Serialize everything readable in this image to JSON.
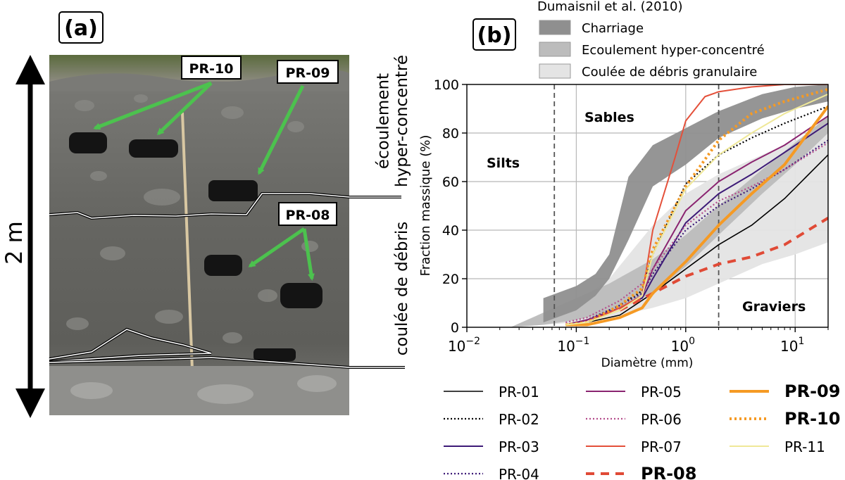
{
  "panel_a": {
    "label": "(a)",
    "height_label": "2 m",
    "sample_labels": [
      "PR-10",
      "PR-09",
      "PR-08"
    ],
    "unit_upper": "écoulement\nhyper-concentré",
    "unit_lower": "coulée de débris"
  },
  "chart_data": {
    "type": "line",
    "panel_label": "(b)",
    "title": "",
    "xlabel": "Diamètre (mm)",
    "ylabel": "Fraction massique (%)",
    "xscale": "log",
    "xlim": [
      0.01,
      20
    ],
    "ylim": [
      0,
      100
    ],
    "xticks": [
      0.01,
      0.1,
      1,
      10
    ],
    "xtick_labels": [
      {
        "base": "10",
        "exp": "−2"
      },
      {
        "base": "10",
        "exp": "−1"
      },
      {
        "base": "10",
        "exp": "0"
      },
      {
        "base": "10",
        "exp": "1"
      }
    ],
    "yticks": [
      0,
      20,
      40,
      60,
      80,
      100
    ],
    "grid": true,
    "vlines": [
      0.063,
      2
    ],
    "annotations": [
      "Silts",
      "Sables",
      "Graviers"
    ],
    "band_legend_title": "Dumaisnil et al. (2010)",
    "bands": [
      {
        "name": "Charriage",
        "color": "#8f8f8f",
        "x": [
          0.05,
          0.1,
          0.15,
          0.2,
          0.3,
          0.5,
          1,
          2,
          5,
          10,
          20
        ],
        "low": [
          2,
          7,
          13,
          20,
          36,
          58,
          67,
          78,
          86,
          90,
          93
        ],
        "high": [
          12,
          17,
          22,
          30,
          62,
          75,
          82,
          89,
          96,
          99,
          100
        ]
      },
      {
        "name": "Ecoulement hyper-concentré",
        "color": "#bcbcbc",
        "x": [
          0.025,
          0.05,
          0.1,
          0.2,
          0.5,
          1,
          2,
          5,
          10,
          20
        ],
        "low": [
          0,
          1,
          3,
          6,
          14,
          25,
          38,
          55,
          67,
          80
        ],
        "high": [
          0,
          6,
          12,
          18,
          28,
          38,
          50,
          65,
          76,
          87
        ]
      },
      {
        "name": "Coulée de débris granulaire",
        "color": "#e4e4e4",
        "x": [
          0.025,
          0.1,
          0.2,
          0.5,
          1,
          2,
          5,
          10,
          20
        ],
        "low": [
          0,
          2,
          4,
          8,
          12,
          18,
          26,
          30,
          35
        ],
        "high": [
          0,
          10,
          20,
          42,
          55,
          63,
          71,
          77,
          82
        ]
      }
    ],
    "series": [
      {
        "name": "PR-01",
        "color": "#000000",
        "width": 1.6,
        "dash": "",
        "bold": false,
        "x": [
          0.08,
          0.125,
          0.25,
          0.5,
          1,
          2,
          4,
          8,
          20
        ],
        "y": [
          1,
          2,
          5,
          14,
          24,
          34,
          42,
          53,
          71
        ]
      },
      {
        "name": "PR-02",
        "color": "#000000",
        "width": 2.2,
        "dash": "2 3",
        "bold": false,
        "x": [
          0.08,
          0.125,
          0.25,
          0.4,
          0.5,
          1,
          2,
          4,
          8,
          20
        ],
        "y": [
          1,
          3,
          9,
          15,
          30,
          59,
          71,
          78,
          84,
          91
        ]
      },
      {
        "name": "PR-03",
        "color": "#3d1a77",
        "width": 2,
        "dash": "",
        "bold": false,
        "x": [
          0.08,
          0.125,
          0.25,
          0.4,
          0.5,
          1,
          2,
          4,
          8,
          20
        ],
        "y": [
          1,
          3,
          8,
          12,
          20,
          43,
          55,
          63,
          72,
          84
        ]
      },
      {
        "name": "PR-04",
        "color": "#3d1a77",
        "width": 2.2,
        "dash": "2 3",
        "bold": false,
        "x": [
          0.08,
          0.125,
          0.25,
          0.4,
          0.5,
          1,
          2,
          4,
          8,
          20
        ],
        "y": [
          1,
          3,
          9,
          14,
          22,
          40,
          50,
          57,
          65,
          77
        ]
      },
      {
        "name": "PR-05",
        "color": "#8a2470",
        "width": 2,
        "dash": "",
        "bold": false,
        "x": [
          0.08,
          0.125,
          0.25,
          0.4,
          0.5,
          1,
          2,
          4,
          8,
          20
        ],
        "y": [
          1,
          3,
          8,
          13,
          24,
          48,
          60,
          68,
          75,
          87
        ]
      },
      {
        "name": "PR-06",
        "color": "#b44d8c",
        "width": 2.2,
        "dash": "2 3",
        "bold": false,
        "x": [
          0.08,
          0.125,
          0.25,
          0.4,
          0.5,
          1,
          2,
          4,
          8,
          20
        ],
        "y": [
          2,
          4,
          11,
          18,
          24,
          42,
          52,
          58,
          65,
          76
        ]
      },
      {
        "name": "PR-07",
        "color": "#e4503a",
        "width": 2,
        "dash": "",
        "bold": false,
        "x": [
          0.08,
          0.125,
          0.25,
          0.4,
          0.5,
          0.8,
          1,
          1.5,
          2,
          4,
          8,
          20
        ],
        "y": [
          1,
          2,
          8,
          13,
          40,
          70,
          85,
          95,
          97,
          99,
          100,
          100
        ]
      },
      {
        "name": "PR-08",
        "color": "#e04a36",
        "width": 4,
        "dash": "12 9",
        "bold": true,
        "x": [
          0.25,
          0.5,
          1,
          2,
          4,
          8,
          20
        ],
        "y": [
          7,
          14,
          21,
          26,
          29,
          34,
          45
        ]
      },
      {
        "name": "PR-09",
        "color": "#f59a24",
        "width": 4,
        "dash": "",
        "bold": true,
        "x": [
          0.08,
          0.125,
          0.25,
          0.4,
          0.5,
          1,
          2,
          4,
          8,
          20
        ],
        "y": [
          1,
          1,
          4,
          8,
          14,
          27,
          42,
          55,
          67,
          91
        ]
      },
      {
        "name": "PR-10",
        "color": "#f59a24",
        "width": 4,
        "dash": "3 4",
        "bold": true,
        "x": [
          0.08,
          0.125,
          0.25,
          0.4,
          0.5,
          1,
          2,
          4,
          8,
          20
        ],
        "y": [
          1,
          2,
          9,
          16,
          32,
          58,
          77,
          88,
          93,
          98
        ]
      },
      {
        "name": "PR-11",
        "color": "#efe898",
        "width": 2,
        "dash": "",
        "bold": false,
        "x": [
          0.08,
          0.125,
          0.25,
          0.4,
          0.5,
          1,
          2,
          4,
          8,
          20
        ],
        "y": [
          1,
          2,
          7,
          13,
          30,
          57,
          71,
          80,
          88,
          96
        ]
      }
    ],
    "legend": {
      "columns": [
        [
          "PR-01",
          "PR-02",
          "PR-03",
          "PR-04"
        ],
        [
          "PR-05",
          "PR-06",
          "PR-07",
          "PR-08"
        ],
        [
          "PR-09",
          "PR-10",
          "PR-11"
        ]
      ]
    }
  }
}
